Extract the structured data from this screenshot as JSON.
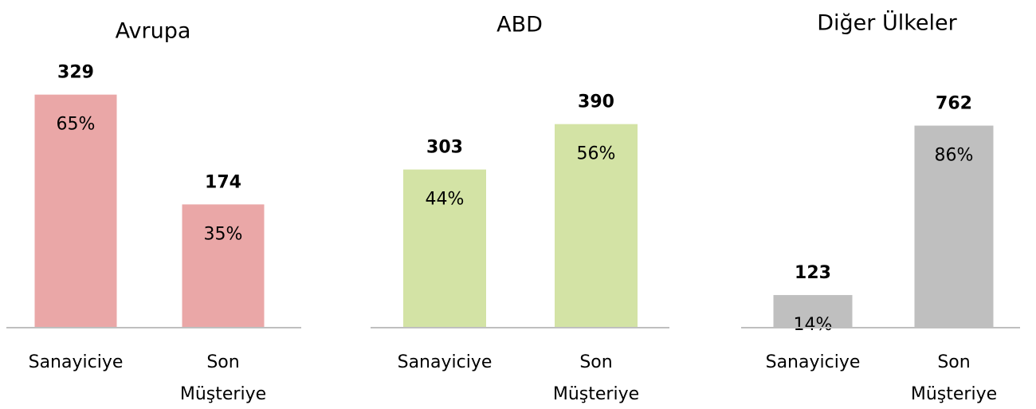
{
  "chart_data": [
    {
      "type": "bar",
      "title": "Avrupa",
      "categories": [
        "Sanayiciye",
        "Son Müşteriye"
      ],
      "values": [
        329,
        174
      ],
      "share_labels": [
        "65%",
        "35%"
      ],
      "color": "#eaa7a7",
      "ylim": [
        0,
        350
      ]
    },
    {
      "type": "bar",
      "title": "ABD",
      "categories": [
        "Sanayiciye",
        "Son Müşteriye"
      ],
      "values": [
        303,
        390
      ],
      "share_labels": [
        "44%",
        "56%"
      ],
      "color": "#d3e3a5",
      "ylim": [
        0,
        475
      ]
    },
    {
      "type": "bar",
      "title": "Diğer Ülkeler",
      "categories": [
        "Sanayiciye",
        "Son Müşteriye"
      ],
      "values": [
        123,
        762
      ],
      "share_labels": [
        "14%",
        "86%"
      ],
      "color": "#bfbfbf",
      "ylim": [
        0,
        935
      ]
    }
  ]
}
